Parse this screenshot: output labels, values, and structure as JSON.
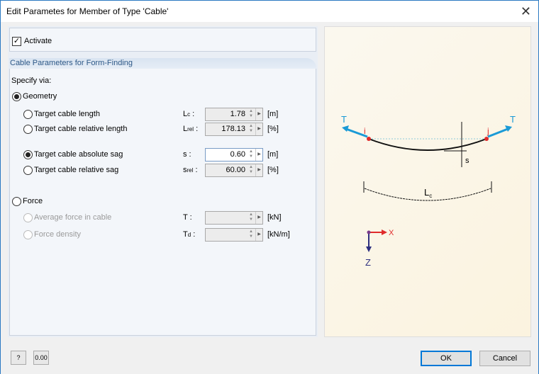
{
  "window": {
    "title": "Edit Parametes for Member of Type 'Cable'"
  },
  "activate": {
    "label": "Activate",
    "checked": true
  },
  "section": {
    "title": "Cable Parameters for Form-Finding",
    "specify_via": "Specify via:"
  },
  "geometry": {
    "label": "Geometry",
    "selected": true,
    "rows": [
      {
        "label": "Target cable length",
        "symbol": "L",
        "sub": "c",
        "value": "1.78",
        "unit": "[m]",
        "selected": false
      },
      {
        "label": "Target cable relative length",
        "symbol": "L",
        "sub": "rel",
        "value": "178.13",
        "unit": "[%]",
        "selected": false
      },
      {
        "label": "Target cable absolute sag",
        "symbol": "s",
        "sub": "",
        "value": "0.60",
        "unit": "[m]",
        "selected": true
      },
      {
        "label": "Target cable relative sag",
        "symbol": "s",
        "sub": "rel",
        "value": "60.00",
        "unit": "[%]",
        "selected": false
      }
    ]
  },
  "force": {
    "label": "Force",
    "selected": false,
    "rows": [
      {
        "label": "Average force in cable",
        "symbol": "T",
        "sub": "",
        "value": "",
        "unit": "[kN]"
      },
      {
        "label": "Force density",
        "symbol": "T",
        "sub": "d",
        "value": "",
        "unit": "[kN/m]"
      }
    ]
  },
  "diagram": {
    "t_left": "T",
    "t_right": "T",
    "node_i": "i",
    "node_j": "j",
    "sag": "s",
    "length": "L",
    "length_sub": "c",
    "axis_x": "X",
    "axis_z": "Z",
    "colors": {
      "tension": "#1a9ad6",
      "node": "#e02b2b",
      "z_axis": "#2d2f7f"
    }
  },
  "footer": {
    "ok": "OK",
    "cancel": "Cancel",
    "units_icon": "0.00"
  }
}
